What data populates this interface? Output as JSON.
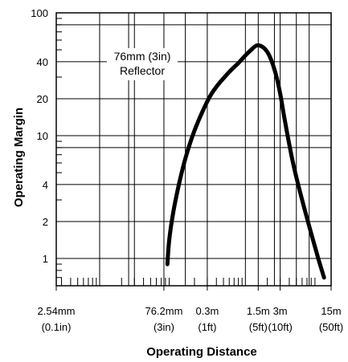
{
  "chart_data": {
    "type": "line",
    "title": "",
    "xlabel": "Operating Distance",
    "ylabel": "Operating Margin",
    "x_scale": "log",
    "y_scale": "log",
    "xlim_m": [
      0.00254,
      15
    ],
    "ylim": [
      0.6,
      100
    ],
    "grid": true,
    "x_ticks": [
      {
        "value_m": 0.00254,
        "label": "2.54mm",
        "sublabel": "(0.1in)"
      },
      {
        "value_m": 0.0762,
        "label": "76.2mm",
        "sublabel": "(3in)"
      },
      {
        "value_m": 0.3,
        "label": "0.3m",
        "sublabel": "(1ft)"
      },
      {
        "value_m": 1.5,
        "label": "1.5m",
        "sublabel": "(5ft)"
      },
      {
        "value_m": 3,
        "label": "3m",
        "sublabel": "(10ft)"
      },
      {
        "value_m": 15,
        "label": "15m",
        "sublabel": "(50ft)"
      }
    ],
    "y_ticks": [
      {
        "value": 1,
        "label": "1"
      },
      {
        "value": 2,
        "label": "2"
      },
      {
        "value": 4,
        "label": "4"
      },
      {
        "value": 10,
        "label": "10"
      },
      {
        "value": 20,
        "label": "20"
      },
      {
        "value": 40,
        "label": "40"
      },
      {
        "value": 100,
        "label": "100"
      }
    ],
    "annotation": {
      "line1": "76mm (3in)",
      "line2": "Reflector"
    },
    "series": [
      {
        "x_m": [
          0.085,
          0.09,
          0.1,
          0.12,
          0.15,
          0.2,
          0.3,
          0.4,
          0.6,
          0.8,
          1.0,
          1.2,
          1.4,
          1.6,
          1.9,
          2.2,
          2.6,
          3.0,
          3.5,
          4.5,
          6,
          8,
          10,
          12
        ],
        "y": [
          0.9,
          1.4,
          2.2,
          3.8,
          6.5,
          11,
          19,
          25,
          33,
          39,
          45,
          50,
          54,
          54,
          50,
          43,
          32,
          22,
          13,
          6,
          3,
          1.6,
          1.0,
          0.7
        ]
      }
    ],
    "colors": {
      "line": "#000000",
      "grid": "#000000",
      "background": "#ffffff"
    }
  }
}
